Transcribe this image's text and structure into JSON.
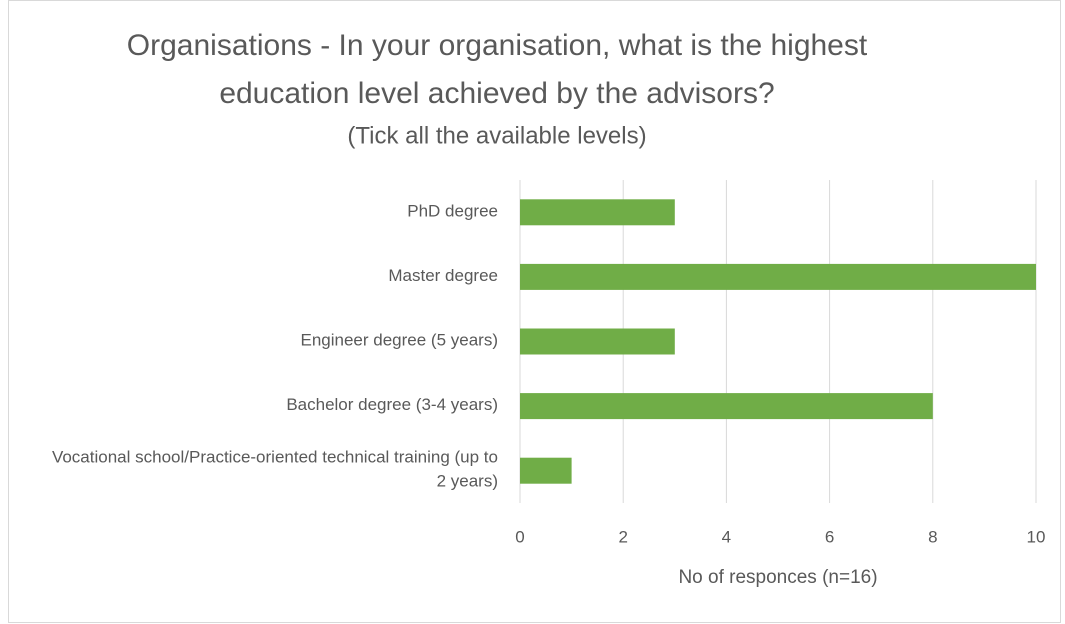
{
  "chart_data": {
    "type": "barh",
    "title": "Organisations - In your organisation, what is the highest education level achieved by the advisors?",
    "subtitle": "(Tick all the available levels)",
    "categories": [
      "PhD degree",
      "Master degree",
      "Engineer degree (5 years)",
      "Bachelor degree (3-4 years)",
      "Vocational school/Practice-oriented technical training (up to 2 years)"
    ],
    "values": [
      3,
      10,
      3,
      8,
      1
    ],
    "color": "#70ad47",
    "xlabel": "No of responces (n=16)",
    "xlim": [
      0,
      10
    ],
    "xticks": [
      0,
      2,
      4,
      6,
      8,
      10
    ],
    "grid": true
  }
}
